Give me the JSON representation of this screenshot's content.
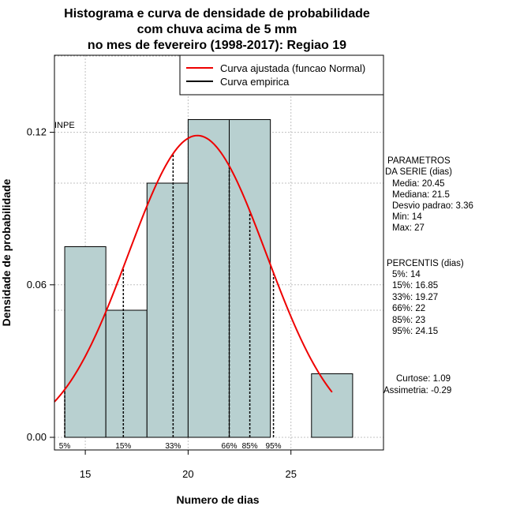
{
  "chart_data": {
    "type": "bar",
    "title_lines": [
      "Histograma e curva de densidade de probabilidade",
      "com chuva acima de 5 mm",
      "no mes de fevereiro (1998-2017): Regiao 19"
    ],
    "xlabel": "Numero de dias",
    "ylabel": "Densidade de probabilidade",
    "xlim": [
      13.5,
      29.5
    ],
    "ylim": [
      0,
      0.15
    ],
    "x_ticks": [
      15,
      20,
      25
    ],
    "y_ticks": [
      0.0,
      0.06,
      0.12
    ],
    "y_tick_labels": [
      "0.00",
      "0.06",
      "0.12"
    ],
    "bins": [
      {
        "from": 14,
        "to": 16,
        "density": 0.075
      },
      {
        "from": 16,
        "to": 18,
        "density": 0.05
      },
      {
        "from": 18,
        "to": 20,
        "density": 0.1
      },
      {
        "from": 20,
        "to": 22,
        "density": 0.125
      },
      {
        "from": 22,
        "to": 24,
        "density": 0.125
      },
      {
        "from": 26,
        "to": 28,
        "density": 0.025
      }
    ],
    "normal_fit": {
      "mean": 20.45,
      "sd": 3.36,
      "x_from": 13.5,
      "x_to": 27
    },
    "percentile_markers": [
      {
        "label": "5%",
        "value": 14
      },
      {
        "label": "15%",
        "value": 16.85
      },
      {
        "label": "33%",
        "value": 19.27
      },
      {
        "label": "66%",
        "value": 22
      },
      {
        "label": "85%",
        "value": 23
      },
      {
        "label": "95%",
        "value": 24.15
      }
    ],
    "legend": [
      {
        "label": "Curva ajustada (funcao Normal)",
        "color": "#ee0000"
      },
      {
        "label": "Curva empirica",
        "color": "#000000"
      }
    ],
    "annotation": "INPE",
    "parameters_title": [
      "PARAMETROS",
      "DA SERIE (dias)"
    ],
    "parameters": [
      "Media: 20.45",
      "Mediana: 21.5",
      "Desvio padrao: 3.36",
      "Min: 14",
      "Max: 27"
    ],
    "percentis_title": "PERCENTIS (dias)",
    "percentis": [
      "5%: 14",
      "15%: 16.85",
      "33%: 19.27",
      "66%: 22",
      "85%: 23",
      "95%: 24.15"
    ],
    "curtose": "Curtose: 1.09",
    "assimetria": "Assimetria: -0.29",
    "colors": {
      "bar": "#b8d0d0",
      "curve": "#ee0000",
      "grid": "#c0c0c0"
    }
  }
}
